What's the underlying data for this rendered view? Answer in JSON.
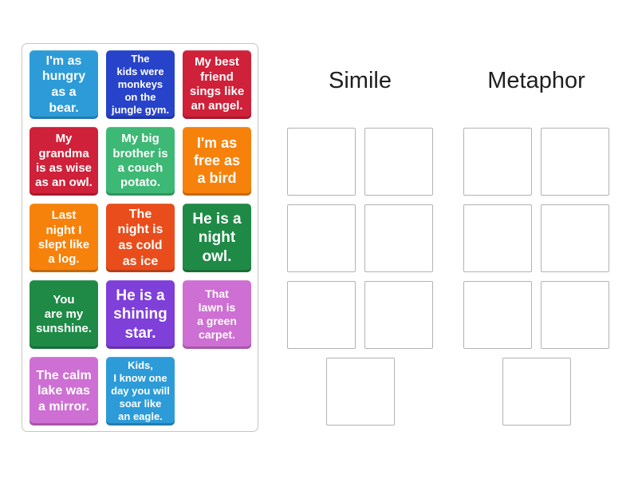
{
  "activity": {
    "kind_label": "group-sort",
    "tile_text_color": "#FFFFFF",
    "header_text_color": "#1F1F1F",
    "panel_border_color": "#C6C6C6",
    "slot_border_color": "#B3B3B3",
    "page_background": "#FFFFFF"
  },
  "tiles": [
    {
      "text": "I'm as\nhungry\nas a\nbear.",
      "color": "#2D9BD8",
      "font_size": 16
    },
    {
      "text": "The\nkids were\nmonkeys\non the\njungle gym.",
      "color": "#2743C9",
      "font_size": 13
    },
    {
      "text": "My best\nfriend\nsings like\nan angel.",
      "color": "#CF2139",
      "font_size": 15
    },
    {
      "text": "My\ngrandma\nis as wise\nas an owl.",
      "color": "#CF2139",
      "font_size": 15
    },
    {
      "text": "My big\nbrother is\na couch\npotato.",
      "color": "#3EB875",
      "font_size": 15
    },
    {
      "text": "I'm as\nfree as\na bird",
      "color": "#F6820C",
      "font_size": 18
    },
    {
      "text": "Last\nnight I\nslept like\na log.",
      "color": "#F6820C",
      "font_size": 15
    },
    {
      "text": "The\nnight is\nas cold\nas ice",
      "color": "#E94D1B",
      "font_size": 16
    },
    {
      "text": "He is a\nnight\nowl.",
      "color": "#1E8A46",
      "font_size": 19
    },
    {
      "text": "You\nare my\nsunshine.",
      "color": "#1E8A46",
      "font_size": 15
    },
    {
      "text": "He is a\nshining\nstar.",
      "color": "#7F3FD9",
      "font_size": 19
    },
    {
      "text": "That\nlawn is\na green\ncarpet.",
      "color": "#CE6FD3",
      "font_size": 14
    },
    {
      "text": "The calm\nlake was\na mirror.",
      "color": "#CE6FD3",
      "font_size": 16
    },
    {
      "text": "Kids,\nI know one\nday you will\nsoar like\nan eagle.",
      "color": "#2D9BD8",
      "font_size": 13
    }
  ],
  "groups": [
    {
      "label": "Simile",
      "slot_count": 7
    },
    {
      "label": "Metaphor",
      "slot_count": 7
    }
  ]
}
